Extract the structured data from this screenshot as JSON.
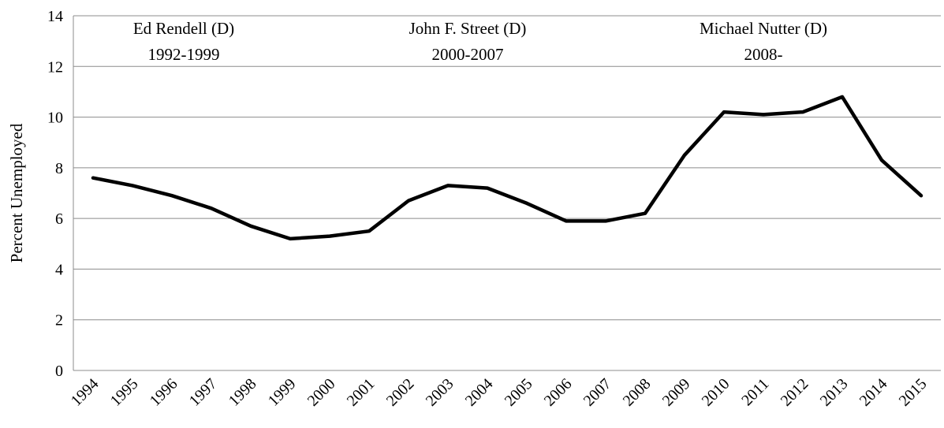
{
  "chart_data": {
    "type": "line",
    "title": "",
    "xlabel": "",
    "ylabel": "Percent Unemployed",
    "ylim": [
      0,
      14
    ],
    "yticks": [
      "0",
      "2",
      "4",
      "6",
      "8",
      "10",
      "12",
      "14"
    ],
    "grid": true,
    "legend": "none",
    "x": [
      "1994",
      "1995",
      "1996",
      "1997",
      "1998",
      "1999",
      "2000",
      "2001",
      "2002",
      "2003",
      "2004",
      "2005",
      "2006",
      "2007",
      "2008",
      "2009",
      "2010",
      "2011",
      "2012",
      "2013",
      "2014",
      "2015"
    ],
    "series": [
      {
        "values": [
          7.6,
          7.3,
          6.9,
          6.4,
          5.7,
          5.2,
          5.3,
          5.5,
          6.7,
          7.3,
          7.2,
          6.6,
          5.9,
          5.9,
          6.2,
          8.5,
          10.2,
          10.1,
          10.2,
          10.8,
          8.3,
          6.9
        ],
        "color": "#000000"
      }
    ],
    "annotations": [
      {
        "name": "Ed Rendell (D)",
        "years": "1992-1999",
        "x_center": 1996.3
      },
      {
        "name": "John F. Street (D)",
        "years": "2000-2007",
        "x_center": 2003.5
      },
      {
        "name": "Michael Nutter (D)",
        "years": "2008-",
        "x_center": 2011.0
      }
    ]
  }
}
